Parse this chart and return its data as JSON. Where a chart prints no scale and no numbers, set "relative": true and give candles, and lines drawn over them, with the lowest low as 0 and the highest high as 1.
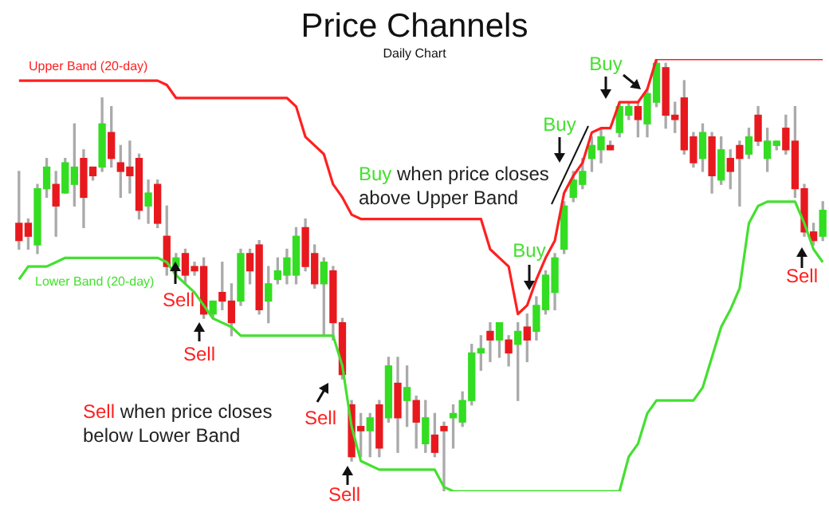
{
  "chart_data": {
    "type": "candlestick",
    "title": "Price Channels",
    "subtitle": "Daily Chart",
    "relative": true,
    "legend": false,
    "categories": [
      null,
      null,
      null,
      null,
      null,
      null,
      null,
      null,
      null,
      null,
      null,
      null,
      null,
      null,
      null,
      null,
      null,
      null,
      null,
      null,
      null,
      null,
      null,
      null,
      null,
      null,
      null,
      null,
      null,
      null,
      null,
      null,
      null,
      null,
      null,
      null,
      null,
      null,
      null,
      null,
      null,
      null,
      null,
      null,
      null,
      null,
      null,
      null,
      null,
      null,
      null,
      null,
      null,
      null,
      null,
      null,
      null,
      null,
      null,
      null,
      null,
      null,
      null,
      null,
      null,
      null,
      null,
      null,
      null,
      null,
      null,
      null,
      null,
      null,
      null,
      null,
      null,
      null,
      null,
      null,
      null,
      null,
      null,
      null,
      null,
      null,
      null,
      null
    ],
    "ohlc": [
      [
        0.62,
        0.74,
        0.56,
        0.58
      ],
      [
        0.62,
        0.63,
        0.56,
        0.59
      ],
      [
        0.57,
        0.71,
        0.55,
        0.7
      ],
      [
        0.7,
        0.77,
        0.68,
        0.75
      ],
      [
        0.71,
        0.74,
        0.59,
        0.66
      ],
      [
        0.69,
        0.77,
        0.69,
        0.76
      ],
      [
        0.71,
        0.85,
        0.66,
        0.75
      ],
      [
        0.77,
        0.79,
        0.61,
        0.68
      ],
      [
        0.75,
        0.75,
        0.72,
        0.73
      ],
      [
        0.75,
        0.91,
        0.74,
        0.85
      ],
      [
        0.83,
        0.89,
        0.75,
        0.77
      ],
      [
        0.76,
        0.8,
        0.68,
        0.74
      ],
      [
        0.75,
        0.81,
        0.69,
        0.73
      ],
      [
        0.77,
        0.78,
        0.63,
        0.65
      ],
      [
        0.66,
        0.72,
        0.62,
        0.69
      ],
      [
        0.71,
        0.72,
        0.61,
        0.62
      ],
      [
        0.59,
        0.66,
        0.5,
        0.52
      ],
      [
        0.52,
        0.55,
        0.5,
        0.54
      ],
      [
        0.55,
        0.56,
        0.48,
        0.5
      ],
      [
        0.52,
        0.53,
        0.5,
        0.51
      ],
      [
        0.52,
        0.54,
        0.4,
        0.41
      ],
      [
        0.41,
        0.44,
        0.4,
        0.44
      ],
      [
        0.46,
        0.53,
        0.42,
        0.44
      ],
      [
        0.44,
        0.48,
        0.36,
        0.39
      ],
      [
        0.44,
        0.56,
        0.43,
        0.55
      ],
      [
        0.55,
        0.56,
        0.48,
        0.51
      ],
      [
        0.57,
        0.58,
        0.41,
        0.42
      ],
      [
        0.44,
        0.52,
        0.39,
        0.48
      ],
      [
        0.49,
        0.54,
        0.48,
        0.51
      ],
      [
        0.5,
        0.56,
        0.48,
        0.54
      ],
      [
        0.5,
        0.61,
        0.48,
        0.59
      ],
      [
        0.61,
        0.63,
        0.51,
        0.52
      ],
      [
        0.55,
        0.57,
        0.47,
        0.48
      ],
      [
        0.48,
        0.54,
        0.36,
        0.53
      ],
      [
        0.51,
        0.52,
        0.35,
        0.39
      ],
      [
        0.39,
        0.4,
        0.26,
        0.27
      ],
      [
        0.2,
        0.21,
        0.07,
        0.08
      ],
      [
        0.15,
        0.18,
        0.08,
        0.14
      ],
      [
        0.14,
        0.18,
        0.08,
        0.17
      ],
      [
        0.2,
        0.21,
        0.08,
        0.1
      ],
      [
        0.17,
        0.31,
        0.16,
        0.29
      ],
      [
        0.25,
        0.31,
        0.09,
        0.17
      ],
      [
        0.21,
        0.29,
        0.15,
        0.24
      ],
      [
        0.21,
        0.22,
        0.1,
        0.16
      ],
      [
        0.11,
        0.21,
        0.09,
        0.17
      ],
      [
        0.13,
        0.18,
        0.08,
        0.09
      ],
      [
        0.15,
        0.16,
        0.0,
        0.14
      ],
      [
        0.17,
        0.2,
        0.1,
        0.18
      ],
      [
        0.16,
        0.23,
        0.15,
        0.21
      ],
      [
        0.21,
        0.34,
        0.2,
        0.32
      ],
      [
        0.32,
        0.36,
        0.28,
        0.33
      ],
      [
        0.37,
        0.39,
        0.3,
        0.35
      ],
      [
        0.35,
        0.39,
        0.31,
        0.39
      ],
      [
        0.35,
        0.36,
        0.29,
        0.32
      ],
      [
        0.34,
        0.39,
        0.21,
        0.37
      ],
      [
        0.38,
        0.41,
        0.3,
        0.35
      ],
      [
        0.37,
        0.45,
        0.35,
        0.43
      ],
      [
        0.42,
        0.51,
        0.41,
        0.5
      ],
      [
        0.46,
        0.55,
        0.42,
        0.54
      ],
      [
        0.56,
        0.67,
        0.55,
        0.66
      ],
      [
        0.68,
        0.74,
        0.67,
        0.72
      ],
      [
        0.71,
        0.77,
        0.7,
        0.74
      ],
      [
        0.77,
        0.82,
        0.74,
        0.8
      ],
      [
        0.79,
        0.84,
        0.76,
        0.82
      ],
      [
        0.8,
        0.81,
        0.79,
        0.79
      ],
      [
        0.83,
        0.9,
        0.82,
        0.89
      ],
      [
        0.87,
        0.9,
        0.86,
        0.89
      ],
      [
        0.89,
        0.9,
        0.82,
        0.86
      ],
      [
        0.85,
        0.93,
        0.82,
        0.92
      ],
      [
        0.9,
        1.0,
        0.89,
        0.99
      ],
      [
        0.98,
        0.99,
        0.84,
        0.87
      ],
      [
        0.87,
        0.9,
        0.83,
        0.86
      ],
      [
        0.91,
        0.95,
        0.78,
        0.79
      ],
      [
        0.82,
        0.83,
        0.75,
        0.76
      ],
      [
        0.77,
        0.85,
        0.74,
        0.83
      ],
      [
        0.82,
        0.83,
        0.69,
        0.73
      ],
      [
        0.72,
        0.82,
        0.71,
        0.79
      ],
      [
        0.77,
        0.79,
        0.7,
        0.74
      ],
      [
        0.8,
        0.81,
        0.66,
        0.77
      ],
      [
        0.78,
        0.84,
        0.77,
        0.82
      ],
      [
        0.87,
        0.89,
        0.8,
        0.81
      ],
      [
        0.77,
        0.84,
        0.74,
        0.81
      ],
      [
        0.8,
        0.81,
        0.79,
        0.81
      ],
      [
        0.84,
        0.87,
        0.78,
        0.79
      ],
      [
        0.81,
        0.89,
        0.68,
        0.7
      ],
      [
        0.7,
        0.71,
        0.59,
        0.6
      ],
      [
        0.6,
        0.62,
        0.57,
        0.58
      ],
      [
        0.59,
        0.67,
        0.58,
        0.65
      ]
    ],
    "colors": [
      "#e8191e",
      "#e8191e",
      "#33dd22",
      "#33dd22",
      "#e8191e",
      "#33dd22",
      "#33dd22",
      "#e8191e",
      "#e8191e",
      "#33dd22",
      "#e8191e",
      "#e8191e",
      "#e8191e",
      "#e8191e",
      "#33dd22",
      "#e8191e",
      "#e8191e",
      "#33dd22",
      "#e8191e",
      "#e8191e",
      "#e8191e",
      "#33dd22",
      "#e8191e",
      "#e8191e",
      "#33dd22",
      "#e8191e",
      "#e8191e",
      "#33dd22",
      "#33dd22",
      "#33dd22",
      "#33dd22",
      "#e8191e",
      "#e8191e",
      "#33dd22",
      "#e8191e",
      "#e8191e",
      "#e8191e",
      "#e8191e",
      "#33dd22",
      "#e8191e",
      "#33dd22",
      "#e8191e",
      "#33dd22",
      "#e8191e",
      "#33dd22",
      "#e8191e",
      "#e8191e",
      "#33dd22",
      "#33dd22",
      "#33dd22",
      "#33dd22",
      "#e8191e",
      "#33dd22",
      "#e8191e",
      "#33dd22",
      "#e8191e",
      "#33dd22",
      "#33dd22",
      "#33dd22",
      "#33dd22",
      "#33dd22",
      "#33dd22",
      "#33dd22",
      "#33dd22",
      "#e8191e",
      "#33dd22",
      "#33dd22",
      "#e8191e",
      "#33dd22",
      "#33dd22",
      "#e8191e",
      "#e8191e",
      "#e8191e",
      "#e8191e",
      "#33dd22",
      "#e8191e",
      "#33dd22",
      "#e8191e",
      "#e8191e",
      "#33dd22",
      "#e8191e",
      "#33dd22",
      "#33dd22",
      "#e8191e",
      "#e8191e",
      "#e8191e",
      "#e8191e",
      "#33dd22"
    ],
    "series": [
      {
        "name": "Upper Band (20-day)",
        "type": "line",
        "color": "#ff2020",
        "values": [
          0.95,
          0.95,
          0.95,
          0.95,
          0.95,
          0.95,
          0.95,
          0.95,
          0.95,
          0.95,
          0.95,
          0.95,
          0.95,
          0.95,
          0.95,
          0.95,
          0.94,
          0.91,
          0.91,
          0.91,
          0.91,
          0.91,
          0.91,
          0.91,
          0.91,
          0.91,
          0.91,
          0.91,
          0.91,
          0.91,
          0.89,
          0.82,
          0.8,
          0.78,
          0.71,
          0.68,
          0.64,
          0.63,
          0.63,
          0.63,
          0.63,
          0.63,
          0.63,
          0.63,
          0.63,
          0.63,
          0.63,
          0.63,
          0.63,
          0.63,
          0.63,
          0.56,
          0.54,
          0.52,
          0.41,
          0.43,
          0.49,
          0.54,
          0.58,
          0.69,
          0.73,
          0.76,
          0.83,
          0.84,
          0.84,
          0.9,
          0.9,
          0.9,
          0.93,
          1.0,
          1.0,
          1.0,
          1.0,
          1.0,
          1.0,
          1.0,
          1.0,
          1.0,
          1.0,
          1.0,
          1.0,
          1.0,
          1.0,
          1.0,
          1.0,
          1.0,
          1.0,
          1.0
        ]
      },
      {
        "name": "Lower Band (20-day)",
        "type": "line",
        "color": "#44e030",
        "values": [
          0.49,
          0.52,
          0.52,
          0.52,
          0.53,
          0.54,
          0.54,
          0.54,
          0.54,
          0.54,
          0.54,
          0.54,
          0.54,
          0.54,
          0.54,
          0.54,
          0.53,
          0.5,
          0.48,
          0.46,
          0.43,
          0.4,
          0.39,
          0.38,
          0.36,
          0.36,
          0.36,
          0.36,
          0.36,
          0.36,
          0.36,
          0.36,
          0.36,
          0.36,
          0.36,
          0.29,
          0.15,
          0.07,
          0.06,
          0.05,
          0.05,
          0.05,
          0.05,
          0.05,
          0.05,
          0.05,
          0.01,
          0.0,
          0.0,
          0.0,
          0.0,
          0.0,
          0.0,
          0.0,
          0.0,
          0.0,
          0.0,
          0.0,
          0.0,
          0.0,
          0.0,
          0.0,
          0.0,
          0.0,
          0.0,
          0.0,
          0.08,
          0.11,
          0.18,
          0.21,
          0.21,
          0.21,
          0.21,
          0.21,
          0.24,
          0.31,
          0.38,
          0.42,
          0.47,
          0.62,
          0.66,
          0.67,
          0.67,
          0.67,
          0.67,
          0.62,
          0.56,
          0.53
        ]
      }
    ],
    "annotations": [
      "Sell",
      "Sell",
      "Sell",
      "Sell",
      "Sell",
      "Buy",
      "Buy",
      "Buy",
      "Sell when price closes below Lower Band",
      "Buy when price closes above Upper Band"
    ]
  }
}
